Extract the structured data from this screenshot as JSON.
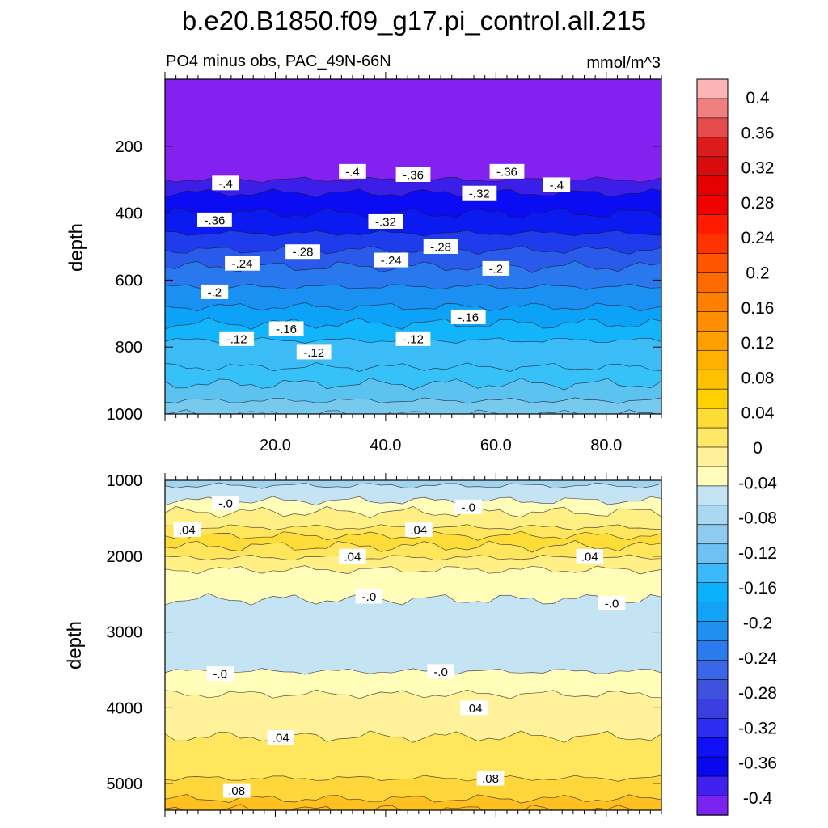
{
  "figure": {
    "title": "b.e20.B1850.f09_g17.pi_control.all.215",
    "subtitle_left": "PO4 minus obs, PAC_49N-66N",
    "subtitle_right": "mmol/m^3"
  },
  "chart_data": [
    {
      "type": "contour",
      "panel": "upper",
      "xlabel": "",
      "ylabel": "depth",
      "xlim": [
        0,
        90
      ],
      "ylim": [
        1000,
        0
      ],
      "xticks": [
        20,
        40,
        60,
        80
      ],
      "xtick_labels": [
        "20.0",
        "40.0",
        "60.0",
        "80.0"
      ],
      "yticks": [
        200,
        400,
        600,
        800,
        1000
      ],
      "ytick_labels": [
        "200",
        "400",
        "600",
        "800",
        "1000"
      ],
      "bands": [
        {
          "from": 0,
          "to": 300,
          "color": "#8221f0"
        },
        {
          "from": 300,
          "to": 340,
          "color": "#3b1fe8"
        },
        {
          "from": 340,
          "to": 400,
          "color": "#0b0cf4"
        },
        {
          "from": 400,
          "to": 460,
          "color": "#0a1af0"
        },
        {
          "from": 460,
          "to": 510,
          "color": "#1e3ceb"
        },
        {
          "from": 510,
          "to": 560,
          "color": "#2a5aea"
        },
        {
          "from": 560,
          "to": 620,
          "color": "#2a78ee"
        },
        {
          "from": 620,
          "to": 680,
          "color": "#1a90f3"
        },
        {
          "from": 680,
          "to": 730,
          "color": "#0ba2f8"
        },
        {
          "from": 730,
          "to": 780,
          "color": "#12b4fa"
        },
        {
          "from": 780,
          "to": 860,
          "color": "#3cbcf7"
        },
        {
          "from": 860,
          "to": 910,
          "color": "#36c1f9"
        },
        {
          "from": 910,
          "to": 960,
          "color": "#5cc3f0"
        },
        {
          "from": 960,
          "to": 1000,
          "color": "#78c9ee"
        }
      ],
      "contour_labels": [
        {
          "text": "-.4",
          "x": 11,
          "y": 310
        },
        {
          "text": "-.4",
          "x": 34,
          "y": 275
        },
        {
          "text": "-.36",
          "x": 45,
          "y": 285
        },
        {
          "text": "-.32",
          "x": 57,
          "y": 340
        },
        {
          "text": "-.36",
          "x": 62,
          "y": 275
        },
        {
          "text": "-.4",
          "x": 71,
          "y": 315
        },
        {
          "text": "-.36",
          "x": 9,
          "y": 420
        },
        {
          "text": "-.32",
          "x": 40,
          "y": 425
        },
        {
          "text": "-.28",
          "x": 25,
          "y": 515
        },
        {
          "text": "-.28",
          "x": 50,
          "y": 500
        },
        {
          "text": "-.24",
          "x": 14,
          "y": 550
        },
        {
          "text": "-.24",
          "x": 41,
          "y": 540
        },
        {
          "text": "-.2",
          "x": 60,
          "y": 565
        },
        {
          "text": "-.2",
          "x": 9,
          "y": 635
        },
        {
          "text": "-.16",
          "x": 22,
          "y": 745
        },
        {
          "text": "-.16",
          "x": 55,
          "y": 710
        },
        {
          "text": "-.12",
          "x": 13,
          "y": 775
        },
        {
          "text": "-.12",
          "x": 45,
          "y": 775
        },
        {
          "text": "-.12",
          "x": 27,
          "y": 815
        }
      ]
    },
    {
      "type": "contour",
      "panel": "lower",
      "xlabel": "",
      "ylabel": "depth",
      "xlim": [
        0,
        90
      ],
      "ylim": [
        5350,
        1000
      ],
      "yticks": [
        1000,
        2000,
        3000,
        4000,
        5000
      ],
      "ytick_labels": [
        "1000",
        "2000",
        "3000",
        "4000",
        "5000"
      ],
      "bands": [
        {
          "from": 1000,
          "to": 1070,
          "color": "#a3d4ee"
        },
        {
          "from": 1070,
          "to": 1270,
          "color": "#c4e4f4"
        },
        {
          "from": 1270,
          "to": 1420,
          "color": "#fffdb8"
        },
        {
          "from": 1420,
          "to": 1620,
          "color": "#ffef85"
        },
        {
          "from": 1620,
          "to": 1730,
          "color": "#ffe65c"
        },
        {
          "from": 1730,
          "to": 1870,
          "color": "#ffdd38"
        },
        {
          "from": 1870,
          "to": 2020,
          "color": "#ffe65c"
        },
        {
          "from": 2020,
          "to": 2180,
          "color": "#ffef85"
        },
        {
          "from": 2180,
          "to": 2570,
          "color": "#fffdb8"
        },
        {
          "from": 2570,
          "to": 3520,
          "color": "#c4e4f4"
        },
        {
          "from": 3520,
          "to": 3820,
          "color": "#fffdb8"
        },
        {
          "from": 3820,
          "to": 4380,
          "color": "#fff29a"
        },
        {
          "from": 4380,
          "to": 4930,
          "color": "#ffe65c"
        },
        {
          "from": 4930,
          "to": 5200,
          "color": "#ffd73a"
        },
        {
          "from": 5200,
          "to": 5350,
          "color": "#ffc020"
        }
      ],
      "contour_labels": [
        {
          "text": "-.0",
          "x": 11,
          "y": 1300
        },
        {
          "text": "-.0",
          "x": 55,
          "y": 1350
        },
        {
          "text": ".04",
          "x": 4,
          "y": 1650
        },
        {
          "text": ".04",
          "x": 46,
          "y": 1650
        },
        {
          "text": ".04",
          "x": 34,
          "y": 2000
        },
        {
          "text": ".04",
          "x": 77,
          "y": 2000
        },
        {
          "text": "-.0",
          "x": 37,
          "y": 2530
        },
        {
          "text": "-.0",
          "x": 81,
          "y": 2620
        },
        {
          "text": "-.0",
          "x": 10,
          "y": 3550
        },
        {
          "text": "-.0",
          "x": 50,
          "y": 3520
        },
        {
          "text": ".04",
          "x": 56,
          "y": 4000
        },
        {
          "text": ".04",
          "x": 21,
          "y": 4390
        },
        {
          "text": ".08",
          "x": 13,
          "y": 5090
        },
        {
          "text": ".08",
          "x": 59,
          "y": 4930
        }
      ]
    }
  ],
  "colorbar": {
    "labels": [
      "0.4",
      "0.36",
      "0.32",
      "0.28",
      "0.24",
      "0.2",
      "0.16",
      "0.12",
      "0.08",
      "0.04",
      "0",
      "-0.04",
      "-0.08",
      "-0.12",
      "-0.16",
      "-0.2",
      "-0.24",
      "-0.28",
      "-0.32",
      "-0.36",
      "-0.4"
    ],
    "colors": [
      "#fcb4b4",
      "#f08080",
      "#e54c4c",
      "#dc1c1c",
      "#d80c0c",
      "#e60000",
      "#f20000",
      "#ff1a00",
      "#ff3300",
      "#ff5500",
      "#ff6a00",
      "#ff7f00",
      "#ff8f00",
      "#ffa000",
      "#ffb000",
      "#ffc000",
      "#ffd000",
      "#ffdc33",
      "#ffe866",
      "#fff199",
      "#fffcbc",
      "#c4e4f4",
      "#a9d8f0",
      "#8ecbf0",
      "#6ec1f2",
      "#3cb9f8",
      "#0bb1fb",
      "#12a3f6",
      "#1f8ff0",
      "#2b7bef",
      "#3a66e8",
      "#3f52de",
      "#3b3ee0",
      "#2b2ef0",
      "#1010f6",
      "#0808ee",
      "#4020f0",
      "#7a22f0"
    ]
  }
}
